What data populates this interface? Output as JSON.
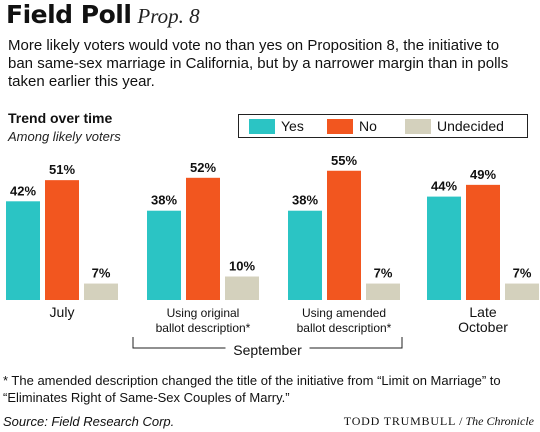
{
  "header": {
    "title": "Field Poll",
    "subtitle": "Prop. 8"
  },
  "intro": "More likely voters would vote no than yes on Proposition 8, the initiative to ban same-sex marriage in California, but by a narrower margin than in polls taken earlier this year.",
  "section": {
    "title": "Trend over time",
    "subtitle": "Among likely voters"
  },
  "legend": [
    {
      "label": "Yes",
      "color": "#2bc4c4"
    },
    {
      "label": "No",
      "color": "#f2561f"
    },
    {
      "label": "Undecided",
      "color": "#d4d1bd"
    }
  ],
  "chart_data": {
    "type": "bar",
    "categories": [
      [
        "July"
      ],
      [
        "Using original",
        "ballot description*"
      ],
      [
        "Using amended",
        "ballot description*"
      ],
      [
        "Late",
        "October"
      ]
    ],
    "series": [
      {
        "name": "Yes",
        "color": "#2bc4c4",
        "values": [
          42,
          38,
          38,
          44
        ],
        "labels": [
          "42%",
          "38%",
          "38%",
          "44%"
        ]
      },
      {
        "name": "No",
        "color": "#f2561f",
        "values": [
          51,
          52,
          55,
          49
        ],
        "labels": [
          "51%",
          "52%",
          "55%",
          "49%"
        ]
      },
      {
        "name": "Undecided",
        "color": "#d4d1bd",
        "values": [
          7,
          10,
          7,
          7
        ],
        "labels": [
          "7%",
          "10%",
          "7%",
          "7%"
        ]
      }
    ],
    "group_bracket": {
      "label": "September",
      "spans_categories": [
        1,
        2
      ]
    },
    "ylim": [
      0,
      100
    ],
    "value_unit": "%"
  },
  "footnote": "* The amended description changed the title of the initiative from “Limit on Marriage” to “Eliminates Right of Same-Sex Couples of Marry.”",
  "source": "Source: Field Research Corp.",
  "credit": {
    "name": "TODD TRUMBULL",
    "separator": " / ",
    "paper": "The Chronicle"
  }
}
